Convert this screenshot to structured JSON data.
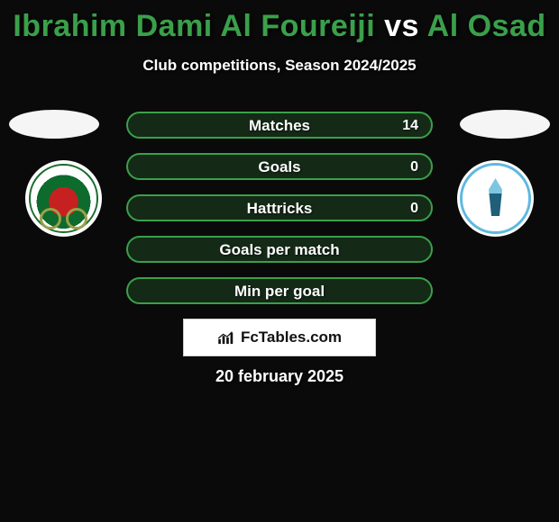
{
  "title": {
    "player": "Ibrahim Dami Al Foureiji",
    "vs": "vs",
    "opponent": "Al Osad",
    "player_color": "#3aa04a",
    "vs_color": "#ffffff",
    "opponent_color": "#3aa04a"
  },
  "subtitle": "Club competitions, Season 2024/2025",
  "styling": {
    "background_color": "#0a0a0a",
    "row_border_color": "#3aa04a",
    "row_fill_color": "rgba(58,160,74,0.22)",
    "row_border_width": 2,
    "row_border_radius": 15,
    "title_fontsize": 34,
    "subtitle_fontsize": 17,
    "stat_label_fontsize": 17,
    "stat_label_color": "#ffffff",
    "date_color": "#ffffff",
    "ellipse_color": "#f5f5f5"
  },
  "badges": {
    "left": {
      "outer": "#ffffff",
      "ring": "#1a6b2e",
      "center": "#c62020",
      "mid": "#0d6b2d"
    },
    "right": {
      "outer": "#ffffff",
      "ring": "#5fb8e0",
      "accent1": "#7cc6e4",
      "accent2": "#1e5f7a"
    }
  },
  "stats": [
    {
      "label": "Matches",
      "value": "14"
    },
    {
      "label": "Goals",
      "value": "0"
    },
    {
      "label": "Hattricks",
      "value": "0"
    },
    {
      "label": "Goals per match",
      "value": ""
    },
    {
      "label": "Min per goal",
      "value": ""
    }
  ],
  "brand": {
    "icon_name": "bar-chart-icon",
    "text": "FcTables.com",
    "text_color": "#111111",
    "box_bg": "#ffffff",
    "box_border": "#cfcfcf"
  },
  "date": "20 february 2025"
}
